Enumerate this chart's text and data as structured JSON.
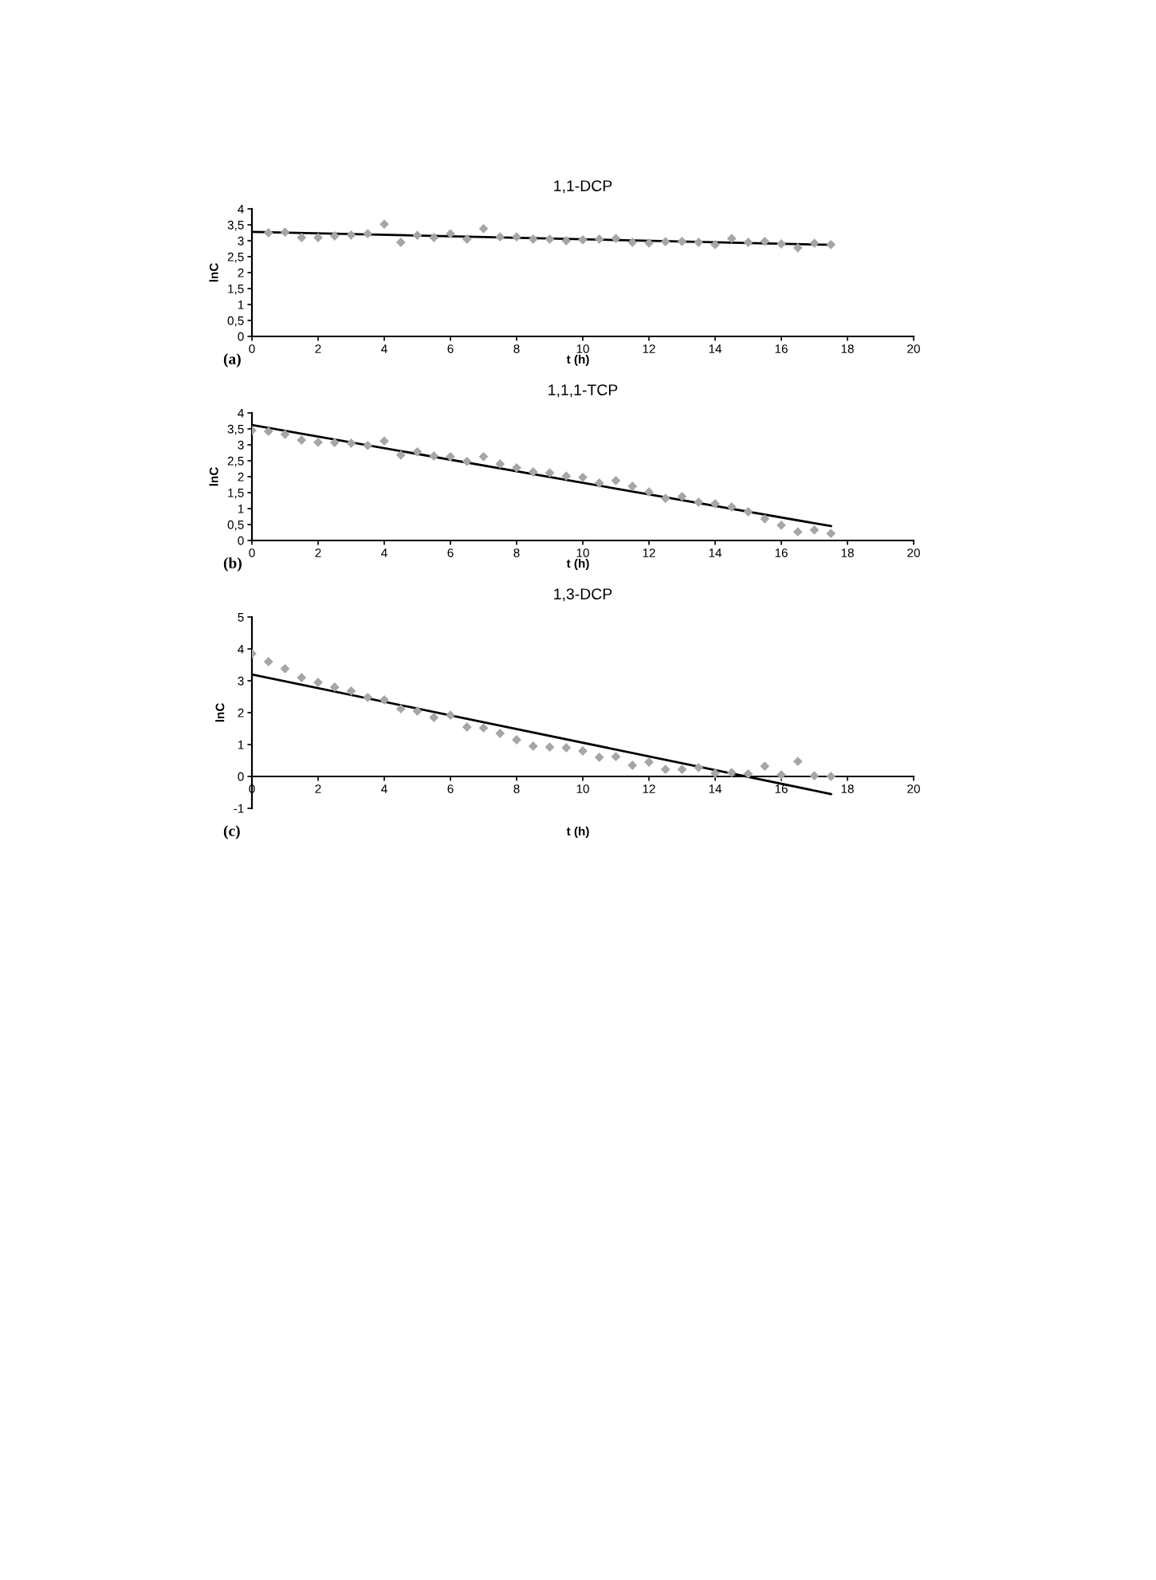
{
  "chart_data": [
    {
      "type": "scatter",
      "title": "1,1-DCP",
      "xlabel": "t (h)",
      "ylabel": "lnC",
      "annotations": [
        "(a)"
      ],
      "marker": "diamond",
      "grid": false,
      "legend": false,
      "xlim": [
        0,
        20
      ],
      "xticks": [
        0,
        2,
        4,
        6,
        8,
        10,
        12,
        14,
        16,
        18,
        20
      ],
      "ylim": [
        0,
        4
      ],
      "yticks": [
        0,
        {
          "value": 0.5,
          "label": "0,5"
        },
        1,
        {
          "value": 1.5,
          "label": "1,5"
        },
        2,
        {
          "value": 2.5,
          "label": "2,5"
        },
        3,
        {
          "value": 3.5,
          "label": "3,5"
        },
        4
      ],
      "series": [
        {
          "color": "#a6a6a6",
          "x": [
            0.5,
            1,
            1.5,
            2,
            2.5,
            3,
            3.5,
            4,
            4.5,
            5,
            5.5,
            6,
            6.5,
            7,
            7.5,
            8,
            8.5,
            9,
            9.5,
            10,
            10.5,
            11,
            11.5,
            12,
            12.5,
            13,
            13.5,
            14,
            14.5,
            15,
            15.5,
            16,
            16.5,
            17,
            17.5
          ],
          "values": [
            3.25,
            3.27,
            3.1,
            3.1,
            3.15,
            3.18,
            3.22,
            3.52,
            2.95,
            3.17,
            3.1,
            3.22,
            3.05,
            3.38,
            3.12,
            3.12,
            3.05,
            3.05,
            3.0,
            3.03,
            3.05,
            3.07,
            2.95,
            2.93,
            2.97,
            2.98,
            2.95,
            2.88,
            3.07,
            2.95,
            2.98,
            2.9,
            2.78,
            2.92,
            2.88
          ]
        },
        {
          "type": "line",
          "color": "#000000",
          "marker": "none",
          "line_style": "solid",
          "x": [
            0,
            17.5
          ],
          "values": [
            3.28,
            2.87
          ]
        }
      ]
    },
    {
      "type": "scatter",
      "title": "1,1,1-TCP",
      "xlabel": "t (h)",
      "ylabel": "lnC",
      "annotations": [
        "(b)"
      ],
      "marker": "diamond",
      "grid": false,
      "legend": false,
      "xlim": [
        0,
        20
      ],
      "xticks": [
        0,
        2,
        4,
        6,
        8,
        10,
        12,
        14,
        16,
        18,
        20
      ],
      "ylim": [
        0,
        4
      ],
      "yticks": [
        0,
        {
          "value": 0.5,
          "label": "0,5"
        },
        1,
        {
          "value": 1.5,
          "label": "1,5"
        },
        2,
        {
          "value": 2.5,
          "label": "2,5"
        },
        3,
        {
          "value": 3.5,
          "label": "3,5"
        },
        4
      ],
      "series": [
        {
          "color": "#a6a6a6",
          "x": [
            0,
            0.5,
            1,
            1.5,
            2,
            2.5,
            3,
            3.5,
            4,
            4.5,
            5,
            5.5,
            6,
            6.5,
            7,
            7.5,
            8,
            8.5,
            9,
            9.5,
            10,
            10.5,
            11,
            11.5,
            12,
            12.5,
            13,
            13.5,
            14,
            14.5,
            15,
            15.5,
            16,
            16.5,
            17,
            17.5
          ],
          "values": [
            3.45,
            3.42,
            3.33,
            3.15,
            3.08,
            3.07,
            3.05,
            2.98,
            3.12,
            2.68,
            2.78,
            2.65,
            2.63,
            2.48,
            2.63,
            2.4,
            2.28,
            2.15,
            2.12,
            2.02,
            1.98,
            1.8,
            1.88,
            1.7,
            1.52,
            1.32,
            1.38,
            1.2,
            1.15,
            1.05,
            0.9,
            0.68,
            0.48,
            0.27,
            0.33,
            0.22
          ]
        },
        {
          "type": "line",
          "color": "#000000",
          "marker": "none",
          "line_style": "solid",
          "x": [
            0,
            17.5
          ],
          "values": [
            3.62,
            0.45
          ]
        }
      ]
    },
    {
      "type": "scatter",
      "title": "1,3-DCP",
      "xlabel": "t (h)",
      "ylabel": "lnC",
      "annotations": [
        "(c)"
      ],
      "marker": "diamond",
      "grid": false,
      "legend": false,
      "xlim": [
        0,
        20
      ],
      "xticks": [
        0,
        2,
        4,
        6,
        8,
        10,
        12,
        14,
        16,
        18,
        20
      ],
      "ylim": [
        -1,
        5
      ],
      "yticks": [
        {
          "value": -1,
          "label": "-1"
        },
        0,
        1,
        2,
        3,
        4,
        5
      ],
      "series": [
        {
          "color": "#a6a6a6",
          "x": [
            0,
            0.5,
            1,
            1.5,
            2,
            2.5,
            3,
            3.5,
            4,
            4.5,
            5,
            5.5,
            6,
            6.5,
            7,
            7.5,
            8,
            8.5,
            9,
            9.5,
            10,
            10.5,
            11,
            11.5,
            12,
            12.5,
            13,
            13.5,
            14,
            14.5,
            15,
            15.5,
            16,
            16.5,
            17,
            17.5
          ],
          "values": [
            3.85,
            3.6,
            3.38,
            3.1,
            2.95,
            2.8,
            2.68,
            2.48,
            2.4,
            2.12,
            2.05,
            1.85,
            1.92,
            1.55,
            1.52,
            1.35,
            1.15,
            0.95,
            0.92,
            0.9,
            0.8,
            0.6,
            0.62,
            0.35,
            0.45,
            0.22,
            0.22,
            0.28,
            0.1,
            0.12,
            0.08,
            0.32,
            0.05,
            0.47,
            0.02,
            0.0
          ]
        },
        {
          "type": "line",
          "color": "#000000",
          "marker": "none",
          "line_style": "solid",
          "x": [
            0,
            17.5
          ],
          "values": [
            3.2,
            -0.55
          ]
        }
      ]
    }
  ]
}
